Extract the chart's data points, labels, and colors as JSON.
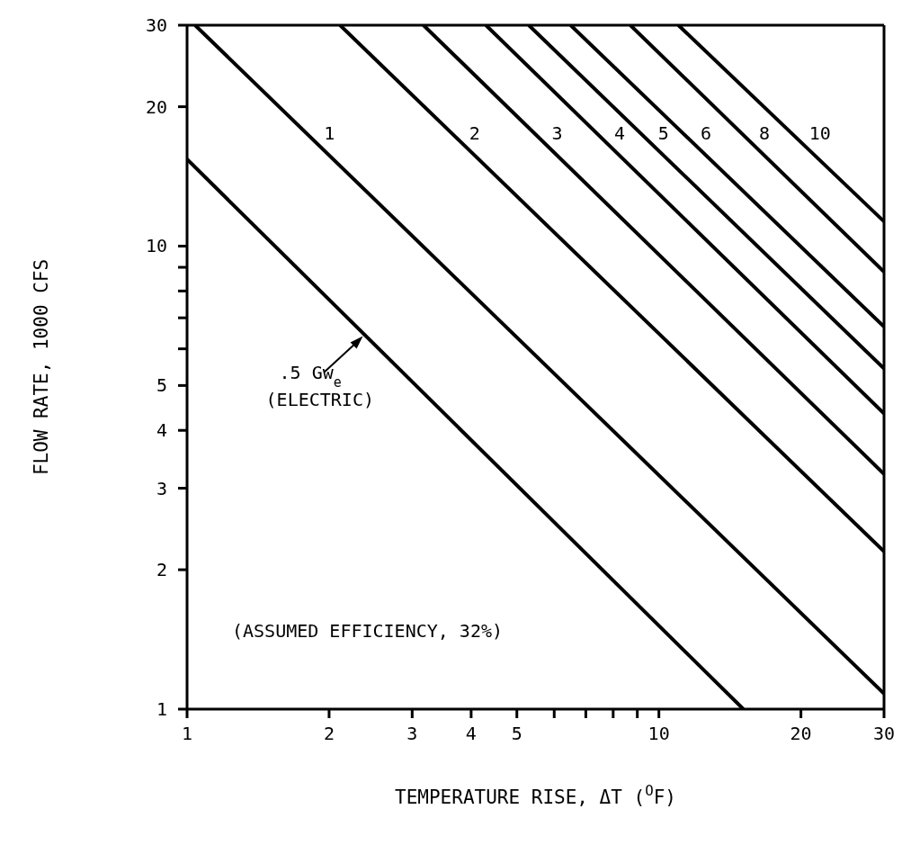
{
  "chart_data": {
    "type": "line",
    "xlabel": "TEMPERATURE RISE, ΔT ($^{O}$F)",
    "ylabel": "FLOW RATE, 1000 CFS",
    "log": "xy",
    "xlim": [
      1,
      30
    ],
    "ylim": [
      1,
      30
    ],
    "xticks": [
      1,
      2,
      3,
      4,
      5,
      {
        "value": 6,
        "label": null
      },
      {
        "value": 7,
        "label": null
      },
      {
        "value": 8,
        "label": null
      },
      {
        "value": 9,
        "label": null
      },
      10,
      20,
      30
    ],
    "yticks": [
      1,
      2,
      3,
      4,
      5,
      {
        "value": 6,
        "label": null
      },
      {
        "value": 7,
        "label": null
      },
      {
        "value": 8,
        "label": null
      },
      {
        "value": 9,
        "label": null
      },
      10,
      20,
      30
    ],
    "marker": "none",
    "line_style": "solid",
    "series": [
      {
        "color": "#000000",
        "x": [
          1,
          15.1
        ],
        "values": [
          15.4,
          1
        ]
      },
      {
        "name": "1",
        "color": "#000000",
        "x": [
          1.04,
          30
        ],
        "values": [
          30,
          1.08
        ]
      },
      {
        "name": "2",
        "color": "#000000",
        "x": [
          2.11,
          30
        ],
        "values": [
          30,
          2.19
        ]
      },
      {
        "name": "3",
        "color": "#000000",
        "x": [
          3.17,
          30
        ],
        "values": [
          30,
          3.22
        ]
      },
      {
        "name": "4",
        "color": "#000000",
        "x": [
          4.3,
          30
        ],
        "values": [
          30,
          4.35
        ]
      },
      {
        "name": "5",
        "color": "#000000",
        "x": [
          5.3,
          30
        ],
        "values": [
          30,
          5.44
        ]
      },
      {
        "name": "6",
        "color": "#000000",
        "x": [
          6.5,
          30
        ],
        "values": [
          30,
          6.7
        ]
      },
      {
        "name": "8",
        "color": "#000000",
        "x": [
          8.7,
          30
        ],
        "values": [
          30,
          8.8
        ]
      },
      {
        "name": "10",
        "color": "#000000",
        "x": [
          11.0,
          30
        ],
        "values": [
          30,
          11.3
        ]
      }
    ],
    "annotations": [
      {
        "text": ".5 Gw$_{e}$\n(ELECTRIC)",
        "x": 2.38,
        "y": 6.45
      },
      "(ASSUMED EFFICIENCY, 32%)"
    ]
  }
}
